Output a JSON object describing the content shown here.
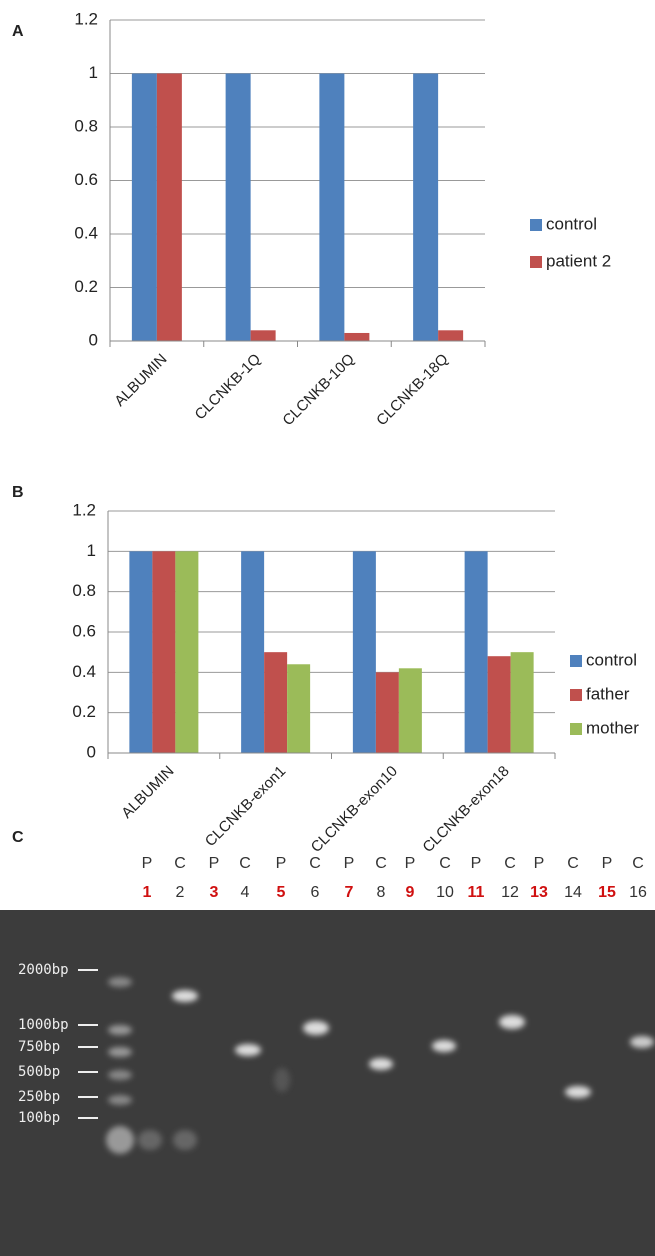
{
  "chart_data": [
    {
      "type": "bar",
      "label": "A",
      "categories": [
        "ALBUMIN",
        "CLCNKB-1Q",
        "CLCNKB-10Q",
        "CLCNKB-18Q"
      ],
      "series": [
        {
          "name": "control",
          "color": "#4f81bd",
          "values": [
            1,
            1,
            1,
            1
          ]
        },
        {
          "name": "patient 2",
          "color": "#c0504d",
          "values": [
            1,
            0.04,
            0.03,
            0.04
          ]
        }
      ],
      "ylim": [
        0,
        1.2
      ],
      "yticks": [
        0,
        0.2,
        0.4,
        0.6,
        0.8,
        1,
        1.2
      ],
      "grid": true,
      "legend": "right"
    },
    {
      "type": "bar",
      "label": "B",
      "categories": [
        "ALBUMIN",
        "CLCNKB-exon1",
        "CLCNKB-exon10",
        "CLCNKB-exon18"
      ],
      "series": [
        {
          "name": "control",
          "color": "#4f81bd",
          "values": [
            1,
            1,
            1,
            1
          ]
        },
        {
          "name": "father",
          "color": "#c0504d",
          "values": [
            1,
            0.5,
            0.4,
            0.48
          ]
        },
        {
          "name": "mother",
          "color": "#9bbb59",
          "values": [
            1,
            0.44,
            0.42,
            0.5
          ]
        }
      ],
      "ylim": [
        0,
        1.2
      ],
      "yticks": [
        0,
        0.2,
        0.4,
        0.6,
        0.8,
        1,
        1.2
      ],
      "grid": true,
      "legend": "right"
    }
  ],
  "gel": {
    "label": "C",
    "lanes": [
      {
        "sample": "P",
        "number": 1
      },
      {
        "sample": "C",
        "number": 2
      },
      {
        "sample": "P",
        "number": 3
      },
      {
        "sample": "C",
        "number": 4
      },
      {
        "sample": "P",
        "number": 5
      },
      {
        "sample": "C",
        "number": 6
      },
      {
        "sample": "P",
        "number": 7
      },
      {
        "sample": "C",
        "number": 8
      },
      {
        "sample": "P",
        "number": 9
      },
      {
        "sample": "C",
        "number": 10
      },
      {
        "sample": "P",
        "number": 11
      },
      {
        "sample": "C",
        "number": 12
      },
      {
        "sample": "P",
        "number": 13
      },
      {
        "sample": "C",
        "number": 14
      },
      {
        "sample": "P",
        "number": 15
      },
      {
        "sample": "C",
        "number": 16
      }
    ],
    "ladder": [
      "2000bp",
      "1000bp",
      "750bp",
      "500bp",
      "250bp",
      "100bp"
    ]
  }
}
